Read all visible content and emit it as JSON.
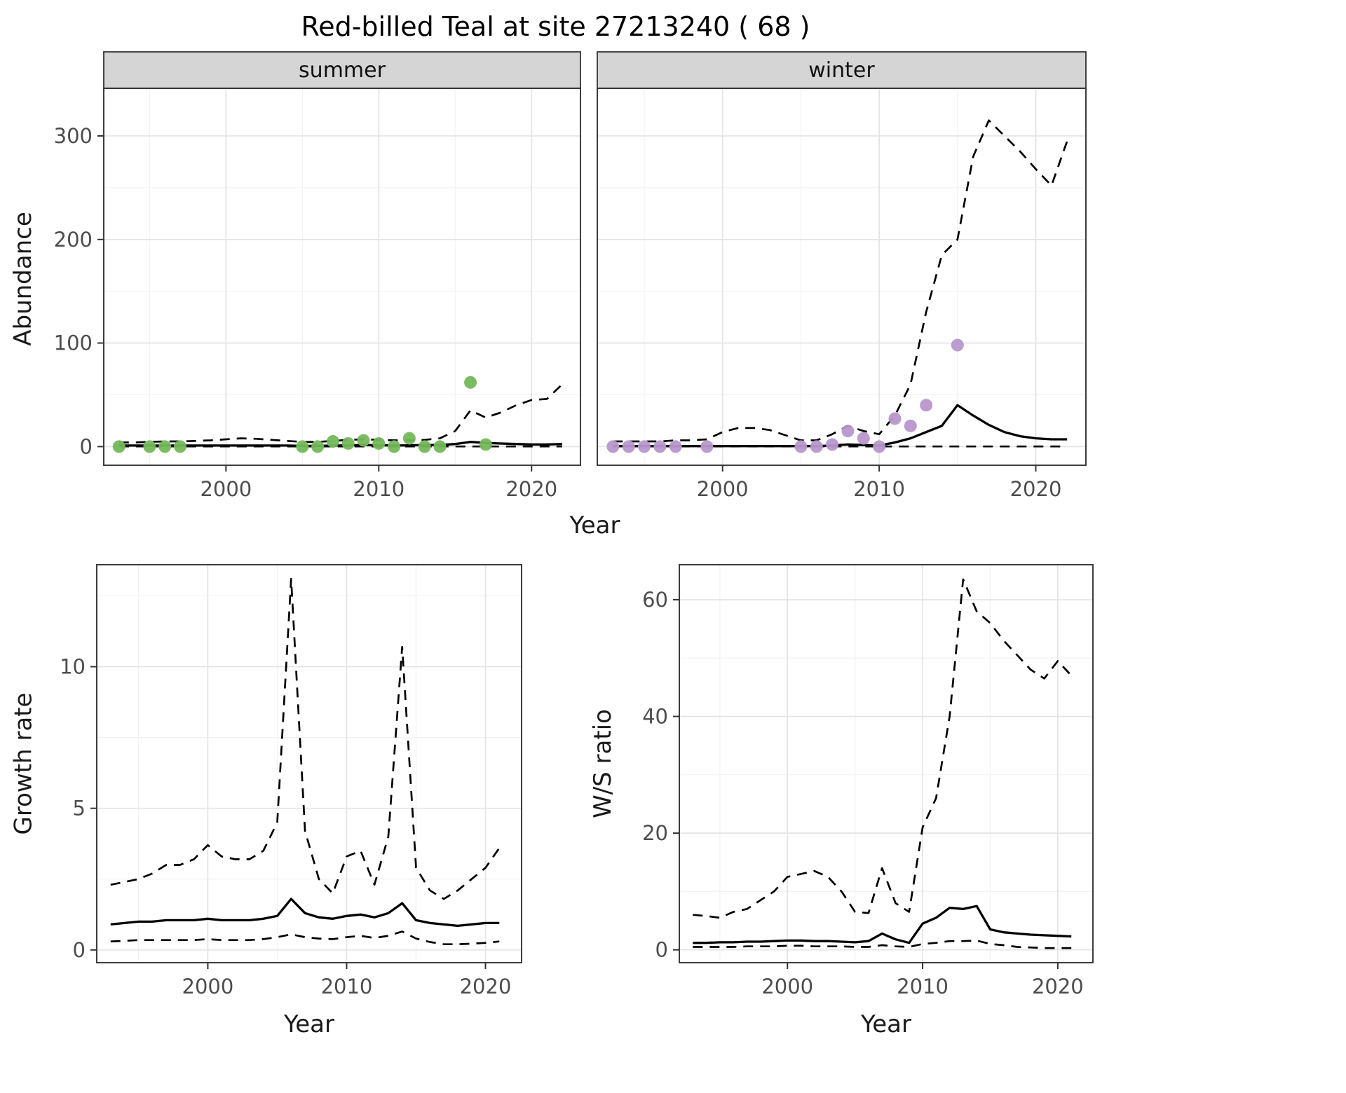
{
  "title": "Red-billed Teal at site 27213240 ( 68 )",
  "labels": {
    "year": "Year",
    "abundance": "Abundance",
    "growth": "Growth rate",
    "ws": "W/S ratio"
  },
  "style": {
    "line_color": "#000000",
    "summer_point_color": "#74b85a",
    "winter_point_color": "#b897cc",
    "strip_bg": "#d5d5d5",
    "grid_major": "#e4e4e4",
    "grid_minor": "#f2f2f2",
    "panel_border": "#333333",
    "tick_text": "#4d4d4d"
  },
  "chart_data": [
    {
      "id": "abundance_summer",
      "type": "line",
      "facet": "summer",
      "xlabel": "Year",
      "ylabel": "Abundance",
      "xlim": [
        1992,
        2023.2
      ],
      "ylim": [
        -18,
        346
      ],
      "x_ticks": [
        2000,
        2010,
        2020
      ],
      "y_ticks": [
        0,
        100,
        200,
        300
      ],
      "years": [
        1993,
        1994,
        1995,
        1996,
        1997,
        1998,
        1999,
        2000,
        2001,
        2002,
        2003,
        2004,
        2005,
        2006,
        2007,
        2008,
        2009,
        2010,
        2011,
        2012,
        2013,
        2014,
        2015,
        2016,
        2017,
        2018,
        2019,
        2020,
        2021,
        2022
      ],
      "median": [
        1,
        1,
        1,
        1,
        1,
        1,
        1,
        1,
        1,
        1,
        1,
        1,
        0.7,
        0.7,
        1,
        1.2,
        1.5,
        1.3,
        1,
        1.2,
        1.5,
        1.5,
        2.5,
        4.5,
        3.5,
        3,
        2.5,
        2,
        2,
        2.5
      ],
      "upper_ci": [
        4,
        4,
        4.5,
        5,
        5,
        5.5,
        6,
        7,
        8,
        7.5,
        6.5,
        5.5,
        4.5,
        4.5,
        5.5,
        6.5,
        7,
        6.5,
        6,
        6,
        6.5,
        8,
        15,
        35,
        28,
        33,
        40,
        45,
        46,
        60
      ],
      "lower_ci": [
        0.1,
        0.1,
        0.1,
        0.1,
        0.1,
        0.1,
        0.1,
        0.1,
        0.1,
        0.1,
        0.1,
        0.1,
        0.1,
        0.1,
        0.1,
        0.1,
        0.1,
        0.1,
        0.1,
        0.1,
        0.1,
        0.1,
        0.1,
        0.1,
        0.1,
        0.1,
        0.1,
        0.1,
        0.1,
        0.1
      ],
      "points": {
        "color": "#74b85a",
        "years": [
          1993,
          1995,
          1996,
          1997,
          2005,
          2006,
          2007,
          2008,
          2009,
          2010,
          2011,
          2012,
          2013,
          2014,
          2016,
          2017
        ],
        "values": [
          0,
          0,
          0,
          0,
          0,
          0,
          5,
          3,
          6,
          3,
          0,
          8,
          0,
          0,
          62,
          2
        ]
      }
    },
    {
      "id": "abundance_winter",
      "type": "line",
      "facet": "winter",
      "xlabel": "Year",
      "ylabel": "Abundance",
      "xlim": [
        1992,
        2023.2
      ],
      "ylim": [
        -18,
        346
      ],
      "x_ticks": [
        2000,
        2010,
        2020
      ],
      "y_ticks": [
        0,
        100,
        200,
        300
      ],
      "years": [
        1993,
        1994,
        1995,
        1996,
        1997,
        1998,
        1999,
        2000,
        2001,
        2002,
        2003,
        2004,
        2005,
        2006,
        2007,
        2008,
        2009,
        2010,
        2011,
        2012,
        2013,
        2014,
        2015,
        2016,
        2017,
        2018,
        2019,
        2020,
        2021,
        2022
      ],
      "median": [
        0.5,
        0.5,
        0.5,
        0.5,
        0.5,
        0.5,
        0.5,
        0.5,
        0.5,
        0.5,
        0.5,
        0.5,
        0.5,
        0.5,
        1,
        2,
        1.5,
        1,
        4,
        8,
        14,
        20,
        40,
        30,
        21,
        14,
        10,
        8,
        7,
        7
      ],
      "upper_ci": [
        5,
        5,
        5,
        5,
        6,
        6,
        7,
        14,
        18,
        18,
        16,
        11,
        6,
        6,
        12,
        20,
        15,
        12,
        30,
        60,
        130,
        185,
        200,
        280,
        315,
        300,
        285,
        268,
        252,
        295
      ],
      "lower_ci": [
        0.1,
        0.1,
        0.1,
        0.1,
        0.1,
        0.1,
        0.1,
        0.1,
        0.1,
        0.1,
        0.1,
        0.1,
        0.1,
        0.1,
        0.1,
        0.1,
        0.1,
        0.1,
        0.1,
        0.1,
        0.1,
        0.1,
        0.1,
        0.1,
        0.1,
        0.1,
        0.1,
        0.1,
        0.1,
        0.1
      ],
      "points": {
        "color": "#b897cc",
        "years": [
          1993,
          1994,
          1995,
          1996,
          1997,
          1999,
          2005,
          2006,
          2007,
          2008,
          2009,
          2010,
          2011,
          2012,
          2013,
          2015
        ],
        "values": [
          0,
          0,
          0,
          0,
          0,
          0,
          0,
          0,
          2,
          15,
          8,
          0,
          27,
          20,
          40,
          98
        ]
      }
    },
    {
      "id": "growth_rate",
      "type": "line",
      "facet": null,
      "xlabel": "Year",
      "ylabel": "Growth rate",
      "xlim": [
        1992,
        2022.6
      ],
      "ylim": [
        -0.45,
        13.6
      ],
      "x_ticks": [
        2000,
        2010,
        2020
      ],
      "y_ticks": [
        0,
        5,
        10
      ],
      "years": [
        1993,
        1994,
        1995,
        1996,
        1997,
        1998,
        1999,
        2000,
        2001,
        2002,
        2003,
        2004,
        2005,
        2006,
        2007,
        2008,
        2009,
        2010,
        2011,
        2012,
        2013,
        2014,
        2015,
        2016,
        2017,
        2018,
        2019,
        2020,
        2021
      ],
      "median": [
        0.9,
        0.95,
        1,
        1,
        1.05,
        1.05,
        1.05,
        1.1,
        1.05,
        1.05,
        1.05,
        1.1,
        1.2,
        1.8,
        1.3,
        1.15,
        1.1,
        1.2,
        1.25,
        1.15,
        1.3,
        1.65,
        1.05,
        0.95,
        0.9,
        0.85,
        0.9,
        0.95,
        0.95
      ],
      "upper_ci": [
        2.3,
        2.4,
        2.5,
        2.7,
        3,
        3,
        3.2,
        3.7,
        3.3,
        3.2,
        3.2,
        3.5,
        4.5,
        13.1,
        4.2,
        2.5,
        2,
        3.3,
        3.5,
        2.3,
        4,
        10.7,
        2.9,
        2.1,
        1.8,
        2.1,
        2.5,
        2.9,
        3.6
      ],
      "lower_ci": [
        0.3,
        0.32,
        0.35,
        0.35,
        0.35,
        0.35,
        0.35,
        0.38,
        0.35,
        0.35,
        0.35,
        0.38,
        0.45,
        0.55,
        0.45,
        0.4,
        0.38,
        0.45,
        0.5,
        0.42,
        0.5,
        0.65,
        0.4,
        0.28,
        0.2,
        0.2,
        0.22,
        0.25,
        0.3
      ],
      "points": null
    },
    {
      "id": "ws_ratio",
      "type": "line",
      "facet": null,
      "xlabel": "Year",
      "ylabel": "W/S ratio",
      "xlim": [
        1992,
        2022.6
      ],
      "ylim": [
        -2.2,
        66
      ],
      "x_ticks": [
        2000,
        2010,
        2020
      ],
      "y_ticks": [
        0,
        20,
        40,
        60
      ],
      "years": [
        1993,
        1994,
        1995,
        1996,
        1997,
        1998,
        1999,
        2000,
        2001,
        2002,
        2003,
        2004,
        2005,
        2006,
        2007,
        2008,
        2009,
        2010,
        2011,
        2012,
        2013,
        2014,
        2015,
        2016,
        2017,
        2018,
        2019,
        2020,
        2021
      ],
      "median": [
        1.2,
        1.2,
        1.3,
        1.3,
        1.4,
        1.4,
        1.5,
        1.6,
        1.6,
        1.5,
        1.5,
        1.4,
        1.3,
        1.5,
        2.8,
        1.8,
        1.2,
        4.5,
        5.5,
        7.2,
        7,
        7.5,
        3.5,
        3,
        2.8,
        2.6,
        2.5,
        2.4,
        2.3
      ],
      "upper_ci": [
        6,
        5.8,
        5.5,
        6.5,
        7,
        8.5,
        10,
        12.5,
        13,
        13.5,
        12.5,
        10,
        6.5,
        6.3,
        14,
        8,
        6.5,
        21,
        26,
        40,
        63.5,
        58,
        56,
        53,
        50.5,
        48,
        46.5,
        49.5,
        47
      ],
      "lower_ci": [
        0.5,
        0.5,
        0.5,
        0.5,
        0.6,
        0.6,
        0.6,
        0.7,
        0.7,
        0.6,
        0.6,
        0.6,
        0.5,
        0.5,
        0.8,
        0.6,
        0.5,
        1,
        1.2,
        1.5,
        1.5,
        1.6,
        1,
        0.8,
        0.5,
        0.4,
        0.3,
        0.3,
        0.3
      ],
      "points": null
    }
  ]
}
